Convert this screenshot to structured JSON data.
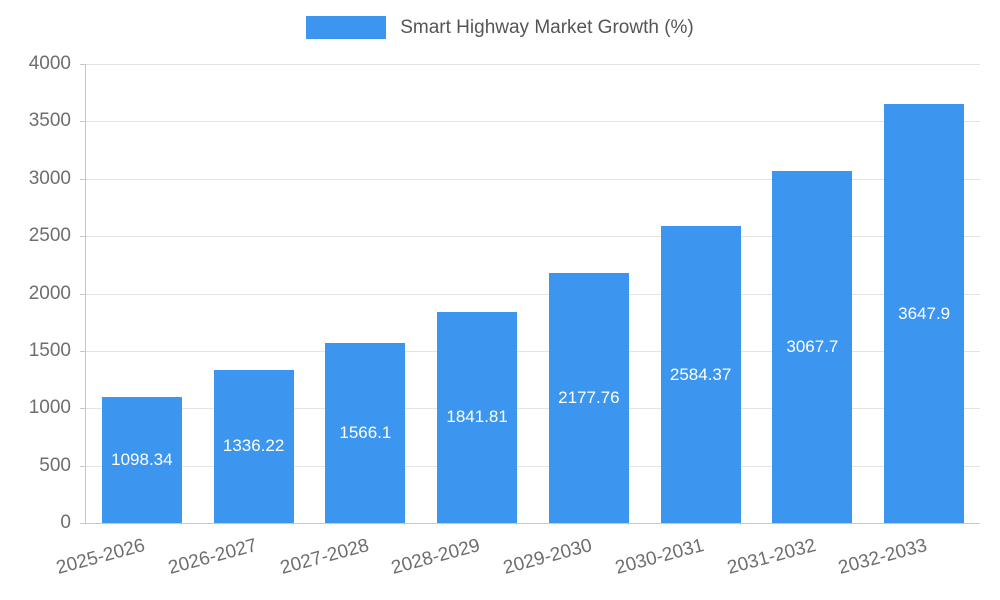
{
  "legend": {
    "swatch_color": "#3c96ef"
  },
  "chart_data": {
    "type": "bar",
    "title": "Smart Highway Market Growth (%)",
    "categories": [
      "2025-2026",
      "2026-2027",
      "2027-2028",
      "2028-2029",
      "2029-2030",
      "2030-2031",
      "2031-2032",
      "2032-2033"
    ],
    "values": [
      1098.34,
      1336.22,
      1566.1,
      1841.81,
      2177.76,
      2584.37,
      3067.7,
      3647.9
    ],
    "value_labels": [
      "1098.34",
      "1336.22",
      "1566.1",
      "1841.81",
      "2177.76",
      "2584.37",
      "3067.7",
      "3647.9"
    ],
    "xlabel": "",
    "ylabel": "",
    "ylim": [
      0,
      4000
    ],
    "yticks": [
      0,
      500,
      1000,
      1500,
      2000,
      2500,
      3000,
      3500,
      4000
    ],
    "bar_color": "#3c96ef",
    "value_label_color": "#ffffff",
    "axis_text_color": "#6e6e6e",
    "grid": true,
    "legend_position": "top"
  }
}
